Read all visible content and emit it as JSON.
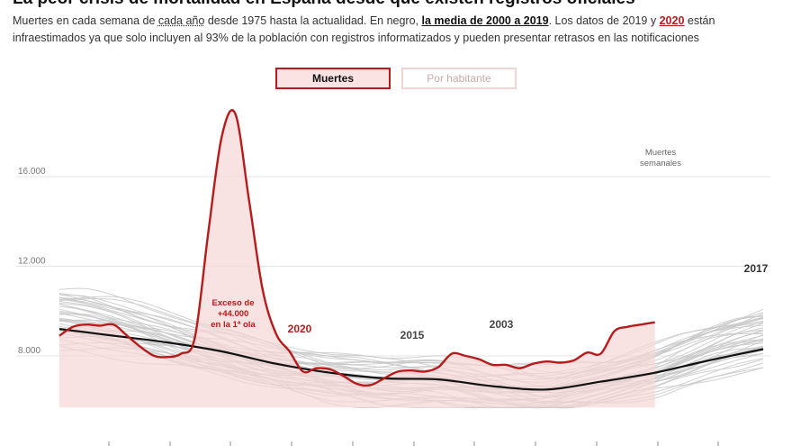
{
  "header": {
    "title": "La peor crisis de mortalidad en España desde que existen registros oficiales",
    "subtitle_parts": {
      "p1": "Muertes en cada semana de ",
      "p2": "cada año",
      "p3": " desde 1975 hasta la actualidad. En negro, ",
      "p4": "la media de 2000 a 2019",
      "p5": ". Los datos de 2019 y ",
      "p6": "2020",
      "p7": " están infraestimados ya que solo incluyen al 93% de la población con registros informatizados y pueden presentar retrasos en las notificaciones"
    }
  },
  "toggles": {
    "active": "Muertes",
    "inactive": "Por habitante"
  },
  "colors": {
    "red": "#b71c1c",
    "fill": "#f6d6d6",
    "gray": "#c8c8c8",
    "black": "#111111"
  },
  "chart_data": {
    "type": "line",
    "ylabel": "Muertes semanales",
    "ylim": [
      5500,
      19500
    ],
    "y_ticks": [
      "16.000",
      "12.000",
      "8.000"
    ],
    "y_tick_values": [
      16000,
      12000,
      8000
    ],
    "x_range_weeks": [
      1,
      53
    ],
    "series": [
      {
        "name": "2020",
        "weeks": [
          1,
          2,
          3,
          4,
          5,
          6,
          7,
          8,
          9,
          10,
          11,
          12,
          13,
          14,
          15,
          16,
          17,
          18,
          19,
          20,
          21,
          22,
          23,
          24,
          25,
          26,
          27,
          28,
          29,
          30,
          31,
          32,
          33,
          34,
          35,
          36,
          37,
          38,
          39,
          40,
          41,
          42,
          43,
          44,
          45,
          46,
          47,
          48,
          49,
          50
        ],
        "values": [
          8900,
          9300,
          9400,
          9350,
          9400,
          8900,
          8400,
          8000,
          7950,
          8100,
          8800,
          13500,
          17800,
          18800,
          15000,
          11000,
          9000,
          8200,
          7300,
          7450,
          7400,
          7100,
          6750,
          6700,
          7000,
          7300,
          7350,
          7300,
          7500,
          8100,
          8000,
          7850,
          7600,
          7600,
          7450,
          7650,
          7750,
          7700,
          7800,
          8150,
          8100,
          9100,
          9300,
          9400,
          9500,
          null,
          null,
          null,
          null,
          null
        ]
      },
      {
        "name": "la media de 2000 a 2019",
        "weeks": [
          1,
          5,
          9,
          13,
          17,
          21,
          25,
          29,
          33,
          37,
          41,
          45,
          49,
          53
        ],
        "values": [
          9200,
          8900,
          8600,
          8200,
          7650,
          7250,
          7000,
          6950,
          6650,
          6500,
          6850,
          7250,
          7800,
          8300
        ]
      }
    ],
    "annotations": [
      {
        "label": "2020",
        "color": "#b71c1c"
      },
      {
        "label": "2015",
        "color": "#444444"
      },
      {
        "label": "2003",
        "color": "#444444"
      },
      {
        "label": "2017",
        "color": "#333333"
      }
    ],
    "excess_note": [
      "Exceso de",
      "+44.000",
      "en la 1ª ola"
    ]
  }
}
